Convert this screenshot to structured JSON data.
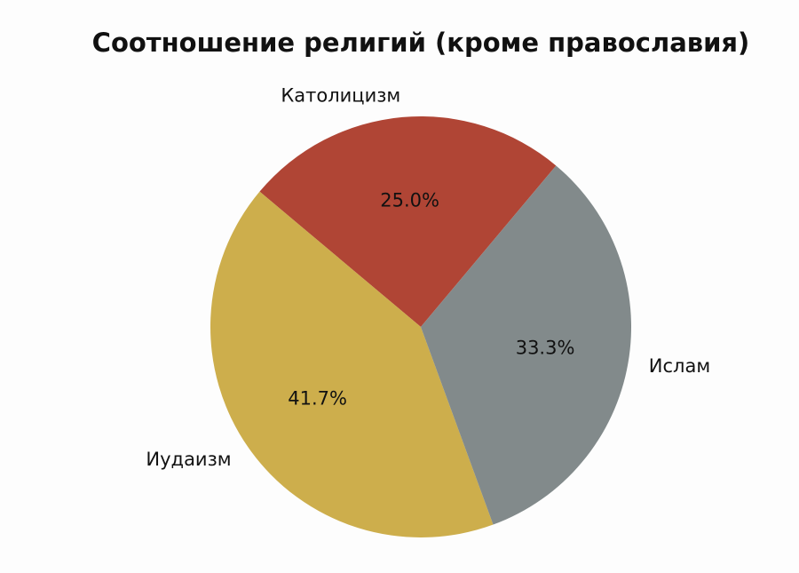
{
  "chart_data": {
    "type": "pie",
    "title": "Соотношение религий (кроме православия)",
    "categories": [
      "Католицизм",
      "Иудаизм",
      "Ислам"
    ],
    "values": [
      25.0,
      41.7,
      33.3
    ],
    "value_labels": [
      "25.0%",
      "41.7%",
      "33.3%"
    ],
    "colors": [
      "#b04535",
      "#cdae4c",
      "#828a8b"
    ],
    "startangle": 50
  }
}
